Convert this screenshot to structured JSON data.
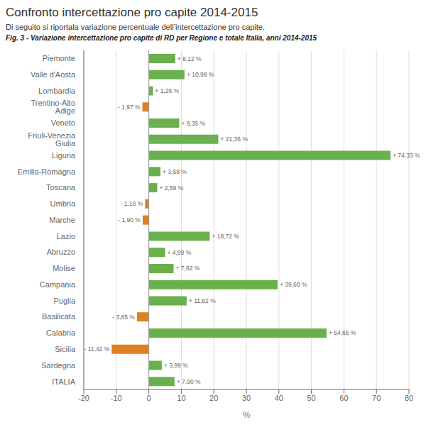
{
  "chart_data": {
    "type": "bar",
    "orientation": "horizontal",
    "title": "Confronto intercettazione pro capite 2014-2015",
    "subtitle": "Di seguito si riportala variazione percentuale dell’intercettazione pro capite.",
    "annotations": [
      "Fig. 3 - Variazione intercettazione pro capite di RD per Regione e totale Italia, anni 2014-2015"
    ],
    "x_label": "%",
    "categories": [
      "Piemonte",
      "Valle d'Aosta",
      "Lombardia",
      "Trentino-Alto Adige",
      "Veneto",
      "Friuli-Venezia Giulia",
      "Liguria",
      "Emilia-Romagna",
      "Toscana",
      "Umbria",
      "Marche",
      "Lazio",
      "Abruzzo",
      "Molise",
      "Campania",
      "Puglia",
      "Basilicata",
      "Calabria",
      "Sicilia",
      "Sardegna",
      "ITALIA"
    ],
    "values": [
      8.12,
      10.98,
      1.26,
      -1.97,
      9.35,
      21.36,
      74.33,
      3.58,
      2.59,
      -1.16,
      -1.9,
      18.72,
      4.99,
      7.62,
      39.6,
      11.62,
      -3.65,
      54.65,
      -11.42,
      3.99,
      7.9
    ],
    "value_labels": [
      "+ 8,12 %",
      "+ 10,98 %",
      "+ 1,26 %",
      "- 1,97 %",
      "+ 9,35 %",
      "+ 21,36 %",
      "+ 74,33 %",
      "+ 3,58 %",
      "+ 2,59 %",
      "- 1,16 %",
      "- 1,90 %",
      "+ 18,72 %",
      "+ 4,99 %",
      "+ 7,62 %",
      "+ 39,60 %",
      "+ 11,62 %",
      "- 3,65 %",
      "+ 54,65 %",
      "- 11,42 %",
      "+ 3,99 %",
      "+ 7,90 %"
    ],
    "data_labels": true,
    "colors": [
      "#6ab04c",
      "#6ab04c",
      "#6ab04c",
      "#e08020",
      "#6ab04c",
      "#6ab04c",
      "#6ab04c",
      "#6ab04c",
      "#6ab04c",
      "#e08020",
      "#e08020",
      "#6ab04c",
      "#6ab04c",
      "#6ab04c",
      "#6ab04c",
      "#6ab04c",
      "#e08020",
      "#6ab04c",
      "#e08020",
      "#6ab04c",
      "#6ab04c"
    ],
    "xlim": [
      -20,
      80
    ],
    "xticks": [
      -20,
      -10,
      0,
      10,
      20,
      30,
      40,
      50,
      60,
      70,
      80
    ],
    "grid": true
  }
}
